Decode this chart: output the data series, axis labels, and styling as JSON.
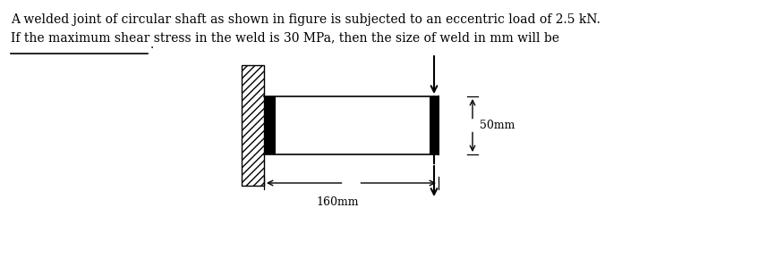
{
  "text_line1": "A welded joint of circular shaft as shown in figure is subjected to an eccentric load of 2.5 kN.",
  "text_line2": "If the maximum shear stress in the weld is 30 MPa, then the size of weld in mm will be",
  "answer_line": "_______________",
  "answer_period": ".",
  "dim_horizontal": "160mm",
  "dim_vertical": "50mm",
  "bg_color": "#ffffff",
  "text_color": "#000000"
}
